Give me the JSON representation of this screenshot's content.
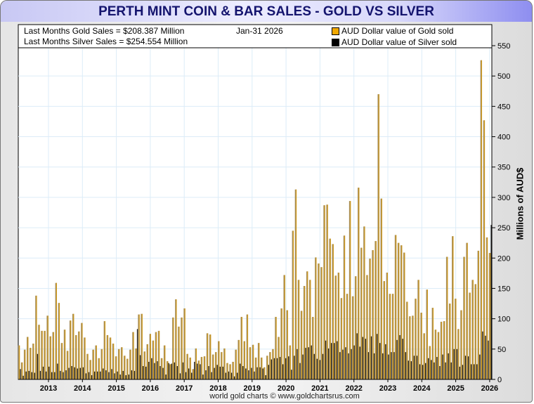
{
  "title": "PERTH MINT COIN & BAR SALES - GOLD VS SILVER",
  "info": {
    "gold_line": "Last Months Gold Sales  = $208.387 Million",
    "silver_line": "Last Months Silver Sales = $254.554 Million",
    "date": "Jan-31  2026"
  },
  "footer": "world gold charts © www.goldchartsrus.com",
  "colors": {
    "gold": "#d49a12",
    "gold_body": "#a8905e",
    "silver": "#1a1a1a",
    "grid": "#dcecf8"
  },
  "chart_data": {
    "type": "bar",
    "title": "PERTH MINT COIN & BAR SALES - GOLD VS SILVER",
    "xlabel": "",
    "ylabel": "Millions of AUD$",
    "ylim": [
      0,
      580
    ],
    "yticks": [
      0,
      50,
      100,
      150,
      200,
      250,
      300,
      350,
      400,
      450,
      500,
      550
    ],
    "xticks": [
      "2013",
      "2014",
      "2015",
      "2016",
      "2017",
      "2018",
      "2019",
      "2020",
      "2021",
      "2022",
      "2023",
      "2024",
      "2025",
      "2026"
    ],
    "x_start": "2012-04",
    "x_end": "2026-01",
    "frequency": "monthly",
    "grid": true,
    "legend_position": "top-right",
    "series": [
      {
        "name": "AUD Dollar value of Gold sold",
        "values": [
          56,
          28,
          49,
          70,
          52,
          59,
          138,
          90,
          80,
          80,
          105,
          71,
          78,
          159,
          126,
          60,
          82,
          47,
          97,
          108,
          73,
          79,
          93,
          69,
          42,
          32,
          49,
          56,
          35,
          50,
          96,
          73,
          69,
          59,
          38,
          50,
          53,
          39,
          34,
          49,
          78,
          51,
          107,
          108,
          46,
          58,
          75,
          64,
          78,
          80,
          35,
          56,
          30,
          25,
          102,
          132,
          87,
          102,
          117,
          42,
          36,
          17,
          51,
          31,
          37,
          38,
          76,
          74,
          41,
          45,
          63,
          45,
          51,
          27,
          25,
          29,
          49,
          65,
          103,
          63,
          107,
          53,
          57,
          36,
          60,
          36,
          20,
          39,
          45,
          50,
          103,
          70,
          117,
          172,
          114,
          56,
          245,
          313,
          164,
          113,
          154,
          178,
          164,
          103,
          201,
          191,
          185,
          287,
          288,
          232,
          223,
          171,
          176,
          134,
          237,
          141,
          294,
          137,
          170,
          316,
          217,
          252,
          172,
          199,
          213,
          228,
          470,
          298,
          162,
          176,
          141,
          141,
          238,
          225,
          221,
          209,
          128,
          104,
          105,
          133,
          164,
          110,
          76,
          148,
          55,
          118,
          82,
          78,
          95,
          96,
          202,
          125,
          236,
          133,
          83,
          114,
          202,
          225,
          143,
          164,
          157,
          212,
          526,
          427,
          234,
          208.387
        ]
      },
      {
        "name": "AUD Dollar value of Silver sold",
        "values": [
          17,
          6,
          13,
          14,
          12,
          11,
          42,
          14,
          21,
          13,
          21,
          12,
          12,
          26,
          14,
          12,
          15,
          19,
          22,
          20,
          18,
          19,
          20,
          10,
          12,
          7,
          13,
          13,
          13,
          18,
          15,
          12,
          17,
          10,
          13,
          8,
          14,
          7,
          8,
          15,
          14,
          83,
          40,
          22,
          21,
          29,
          35,
          27,
          30,
          22,
          19,
          8,
          27,
          26,
          28,
          22,
          10,
          28,
          12,
          18,
          11,
          29,
          26,
          25,
          8,
          15,
          22,
          12,
          19,
          24,
          21,
          21,
          11,
          13,
          11,
          5,
          11,
          26,
          22,
          18,
          15,
          19,
          13,
          20,
          20,
          18,
          7,
          24,
          33,
          35,
          35,
          37,
          25,
          35,
          38,
          16,
          39,
          50,
          27,
          41,
          52,
          53,
          56,
          42,
          34,
          32,
          42,
          64,
          51,
          60,
          60,
          63,
          45,
          49,
          53,
          43,
          50,
          56,
          76,
          54,
          70,
          67,
          45,
          71,
          43,
          75,
          60,
          43,
          58,
          41,
          45,
          45,
          65,
          73,
          67,
          45,
          31,
          30,
          39,
          39,
          25,
          24,
          27,
          35,
          32,
          28,
          37,
          22,
          41,
          28,
          43,
          28,
          50,
          50,
          21,
          24,
          39,
          38,
          25,
          25,
          25,
          41,
          79,
          72,
          64,
          254.554
        ]
      }
    ]
  }
}
